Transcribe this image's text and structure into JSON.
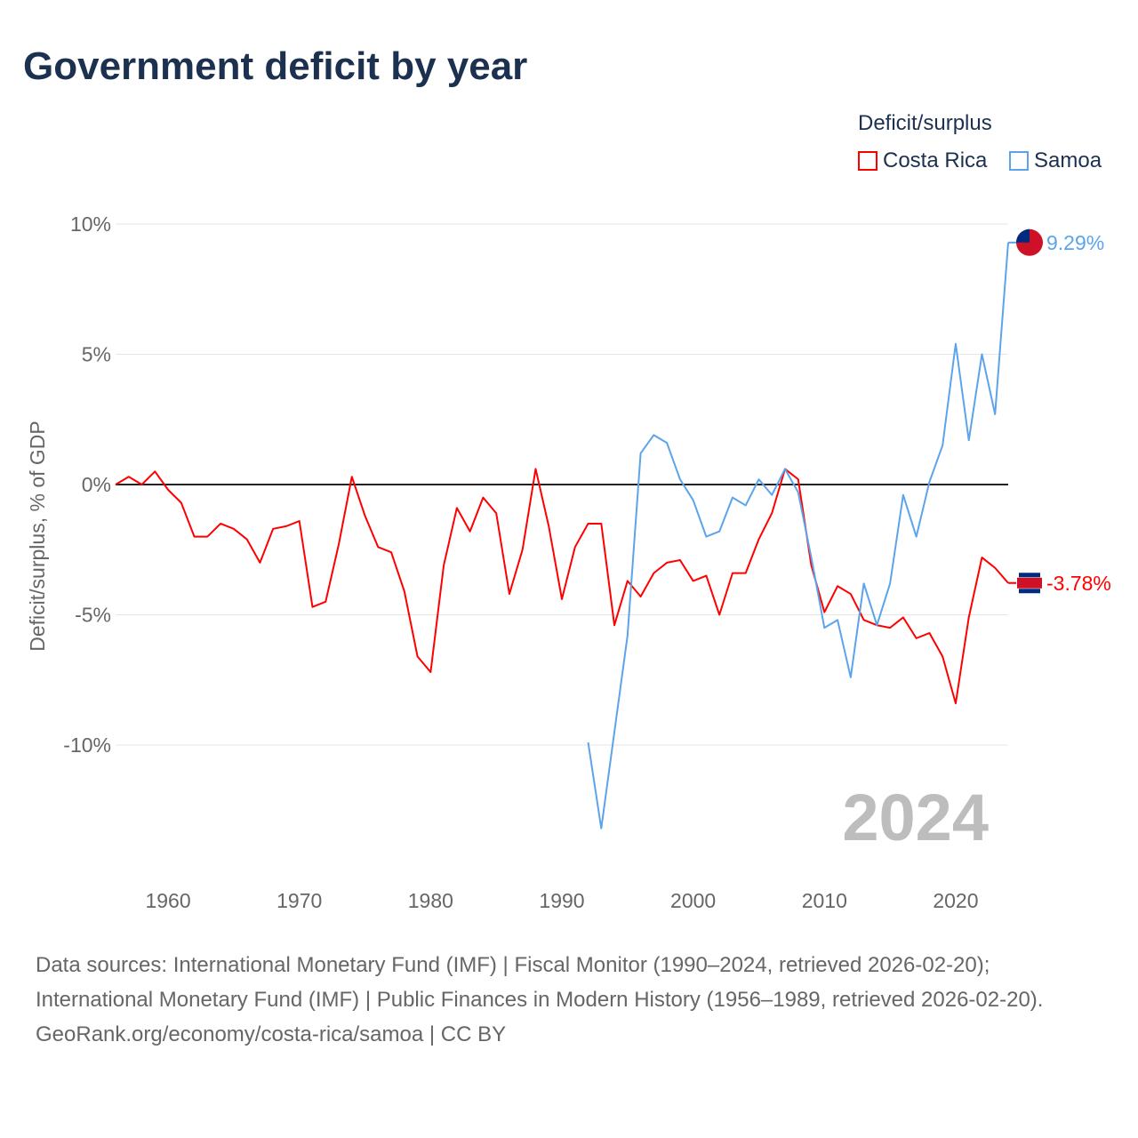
{
  "title": "Government deficit by year",
  "legend": {
    "title": "Deficit/surplus",
    "items": [
      {
        "label": "Costa Rica",
        "color": "#ff0000"
      },
      {
        "label": "Samoa",
        "color": "#5ba4ec"
      }
    ]
  },
  "watermark_year": "2024",
  "sources": "Data sources: International Monetary Fund (IMF) | Fiscal Monitor (1990–2024, retrieved 2026-02-20); International Monetary Fund (IMF) | Public Finances in Modern History (1956–1989, retrieved 2026-02-20).",
  "credit": "GeoRank.org/economy/costa-rica/samoa | CC BY",
  "chart_data": {
    "type": "line",
    "title": "Government deficit by year",
    "ylabel": "Deficit/surplus, % of GDP",
    "xlabel": "",
    "xlim": [
      1956,
      2024
    ],
    "ylim": [
      -14.5,
      10.5
    ],
    "xticks": [
      1960,
      1970,
      1980,
      1990,
      2000,
      2010,
      2020
    ],
    "xtick_labels": [
      "1960",
      "1970",
      "1980",
      "1990",
      "2000",
      "2010",
      "2020"
    ],
    "yticks": [
      10,
      5,
      0,
      -5,
      -10
    ],
    "ytick_labels": [
      "10%",
      "5%",
      "0%",
      "-5%",
      "-10%"
    ],
    "grid": true,
    "legend_position": "top-right",
    "series": [
      {
        "name": "Costa Rica",
        "color": "#ff0000",
        "start_year": 1956,
        "end_label": "-3.78%",
        "values": [
          0,
          0.3,
          0,
          0.5,
          -0.2,
          -0.7,
          -2.0,
          -2.0,
          -1.5,
          -1.7,
          -2.1,
          -3.0,
          -1.7,
          -1.6,
          -1.4,
          -4.7,
          -4.5,
          -2.3,
          0.3,
          -1.2,
          -2.4,
          -2.6,
          -4.1,
          -6.6,
          -7.2,
          -3.1,
          -0.9,
          -1.8,
          -0.5,
          -1.1,
          -4.2,
          -2.5,
          0.6,
          -1.6,
          -4.4,
          -2.4,
          -1.5,
          -1.5,
          -5.4,
          -3.7,
          -4.3,
          -3.4,
          -3.0,
          -2.9,
          -3.7,
          -3.5,
          -5.0,
          -3.4,
          -3.4,
          -2.1,
          -1.1,
          0.6,
          0.2,
          -3.1,
          -4.9,
          -3.9,
          -4.2,
          -5.2,
          -5.4,
          -5.5,
          -5.1,
          -5.9,
          -5.7,
          -6.6,
          -8.4,
          -5.1,
          -2.8,
          -3.2,
          -3.78
        ]
      },
      {
        "name": "Samoa",
        "color": "#5ba4ec",
        "start_year": 1992,
        "end_label": "9.29%",
        "values": [
          -9.9,
          -13.2,
          -9.5,
          -5.8,
          1.2,
          1.9,
          1.6,
          0.2,
          -0.6,
          -2.0,
          -1.8,
          -0.5,
          -0.8,
          0.2,
          -0.4,
          0.6,
          -0.3,
          -2.8,
          -5.5,
          -5.2,
          -7.4,
          -3.8,
          -5.4,
          -3.8,
          -0.4,
          -2.0,
          0.1,
          1.5,
          5.4,
          1.7,
          5.0,
          2.7,
          9.29
        ]
      }
    ]
  }
}
